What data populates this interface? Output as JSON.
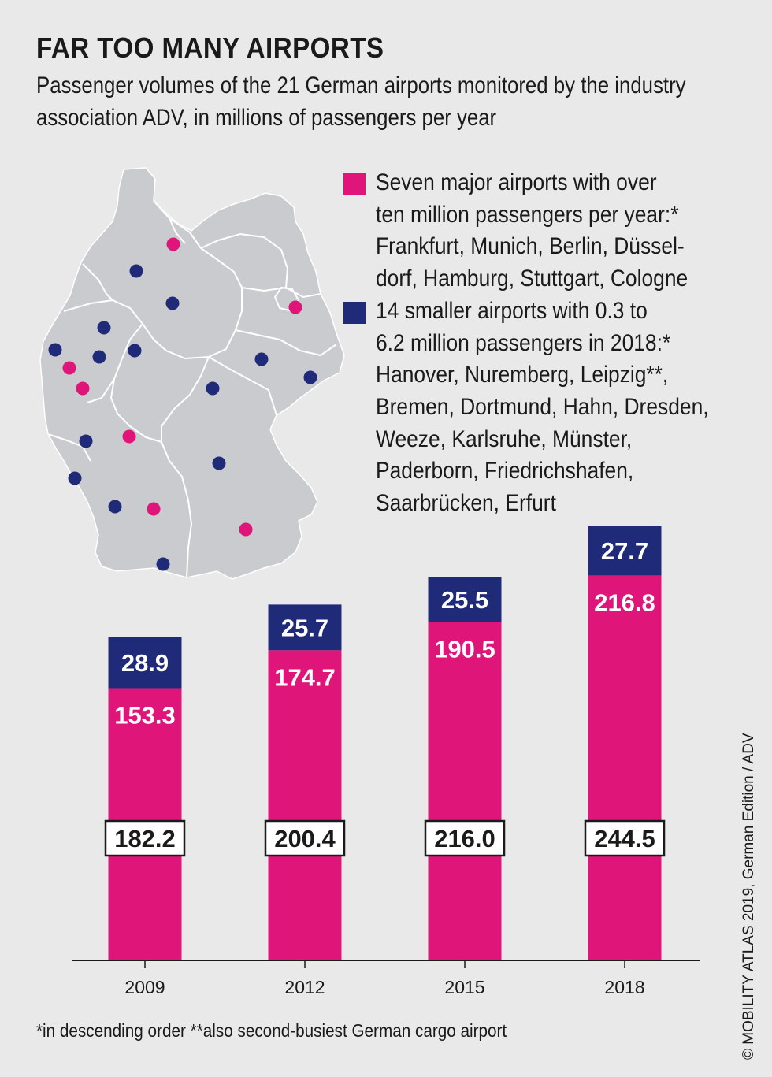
{
  "header": {
    "title": "FAR TOO MANY AIRPORTS",
    "subtitle_line1": "Passenger volumes of the 21 German airports monitored by the industry",
    "subtitle_line2": "association ADV,  in millions of passengers per year"
  },
  "colors": {
    "major": "#e0157a",
    "smaller": "#1f2a78",
    "map_fill": "#c9cbcf",
    "background": "#e9e9ea"
  },
  "legend": {
    "major": {
      "lines": [
        "Seven major airports with over",
        "ten million passengers per year:*",
        "Frankfurt, Munich, Berlin, Düssel-",
        "dorf, Hamburg, Stuttgart, Cologne"
      ]
    },
    "smaller": {
      "lines": [
        "14 smaller airports with 0.3 to",
        "6.2 million passengers in 2018:*",
        "Hanover, Nuremberg, Leipzig**,",
        "Bremen, Dortmund, Hahn, Dresden,",
        "Weeze, Karlsruhe, Münster,",
        "Paderborn, Friedrichshafen,",
        "Saarbrücken, Erfurt"
      ]
    }
  },
  "map": {
    "icon": "germany-map-icon"
  },
  "chart_data": {
    "type": "bar",
    "stacked": true,
    "categories": [
      "2009",
      "2012",
      "2015",
      "2018"
    ],
    "series": [
      {
        "key": "major",
        "values": [
          153.3,
          174.7,
          190.5,
          216.8
        ],
        "labels": [
          "153.3",
          "174.7",
          "190.5",
          "216.8"
        ]
      },
      {
        "key": "smaller",
        "values": [
          28.9,
          25.7,
          25.5,
          27.7
        ],
        "labels": [
          "28.9",
          "25.7",
          "25.5",
          "27.7"
        ]
      }
    ],
    "totals": [
      "182.2",
      "200.4",
      "216.0",
      "244.5"
    ],
    "ylim": [
      0,
      244.5
    ],
    "grid": false
  },
  "footnote": "*in descending order   **also second-busiest German cargo airport",
  "credit": "© MOBILITY ATLAS 2019, German Edition / ADV"
}
